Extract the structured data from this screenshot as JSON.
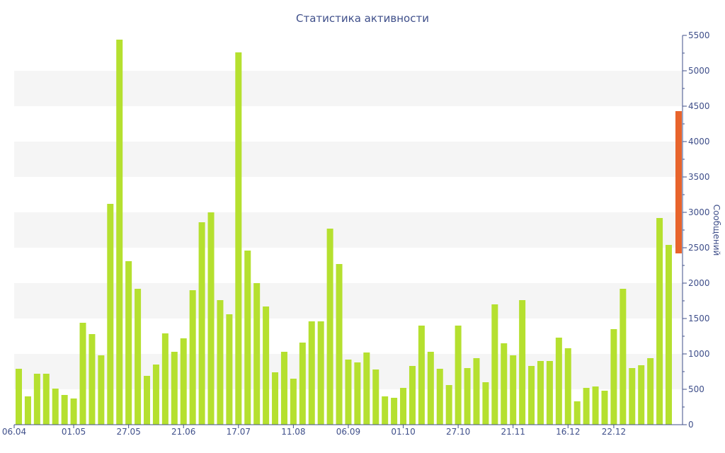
{
  "chart_data": {
    "type": "bar",
    "title": "Статистика активности",
    "ylabel": "Сообщений",
    "xlabel": "",
    "ylim": [
      0,
      5500
    ],
    "y_ticks": [
      0,
      500,
      1000,
      1500,
      2000,
      2500,
      3000,
      3500,
      4000,
      4500,
      5000,
      5500
    ],
    "y_axis_side": "right",
    "x_tick_labels": [
      "06.04",
      "01.05",
      "27.05",
      "21.06",
      "17.07",
      "11.08",
      "06.09",
      "01.10",
      "27.10",
      "21.11",
      "16.12",
      "22.12"
    ],
    "x_tick_bar_index": [
      0,
      6,
      12,
      18,
      24,
      30,
      36,
      42,
      48,
      54,
      60,
      65
    ],
    "grid": "alternating horizontal bands",
    "colors": {
      "bar": "#b5e02f",
      "highlight": "#e8642c",
      "band": "#f5f5f5",
      "text": "#3f4f8a"
    },
    "values": [
      790,
      400,
      720,
      720,
      510,
      420,
      370,
      1440,
      1280,
      980,
      3120,
      5440,
      2310,
      1920,
      690,
      850,
      1290,
      1030,
      1220,
      1900,
      2860,
      3000,
      1760,
      1560,
      5260,
      2460,
      2000,
      1670,
      740,
      1030,
      650,
      1160,
      1460,
      1460,
      2770,
      2270,
      920,
      880,
      1020,
      780,
      400,
      380,
      520,
      830,
      1400,
      1030,
      790,
      560,
      1400,
      800,
      940,
      600,
      1700,
      1150,
      980,
      1760,
      830,
      900,
      900,
      1230,
      1080,
      330,
      520,
      540,
      480,
      1350,
      1920,
      800,
      840,
      940,
      2920,
      2540
    ],
    "highlight_range": [
      2420,
      4430
    ]
  }
}
